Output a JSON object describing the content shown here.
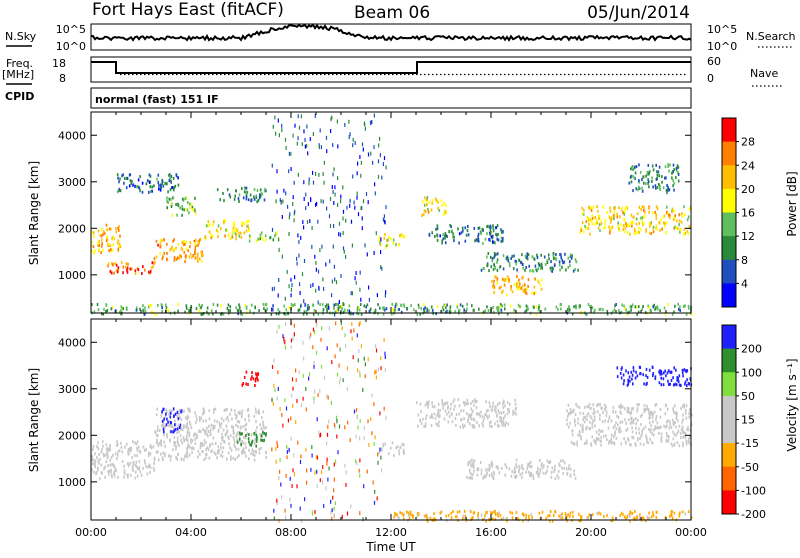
{
  "header": {
    "station": "Fort Hays East (fitACF)",
    "beam": "Beam 06",
    "date": "05/Jun/2014"
  },
  "sky_panel": {
    "left_label": "N.Sky",
    "right_label": "N.Search",
    "left_ticks": [
      "10^5",
      "10^0"
    ],
    "right_ticks": [
      "10^5",
      "10^0"
    ]
  },
  "freq_panel": {
    "left_label_1": "Freq.",
    "left_label_2": "[MHz]",
    "right_label": "Nave",
    "left_ticks": [
      "18",
      "8"
    ],
    "right_ticks": [
      "60",
      "0"
    ],
    "cpid_label": "CPID",
    "mode_text": "normal (fast) 151 IF"
  },
  "colors": {
    "power_scale": [
      "#0000ff",
      "#1f4fbf",
      "#2a8a3a",
      "#5fbf5f",
      "#ffff00",
      "#ffbf00",
      "#ff7f00",
      "#ff0000"
    ],
    "velocity_scale": [
      "#ff0000",
      "#ff6600",
      "#ffaa00",
      "#c8c8c8",
      "#c8c8c8",
      "#7fdf3f",
      "#2f8f2f",
      "#2020ff"
    ],
    "ground_scatter": "#bdbdbd"
  },
  "chart_data": [
    {
      "type": "heatmap",
      "name": "power",
      "ylabel": "Slant Range [km]",
      "x_ticks": [
        "00:00",
        "04:00",
        "08:00",
        "12:00",
        "16:00",
        "20:00",
        "00:00"
      ],
      "y_ticks": [
        "1000",
        "2000",
        "3000",
        "4000"
      ],
      "xlim": [
        0,
        24
      ],
      "ylim": [
        180,
        4500
      ],
      "colorbar": {
        "label": "Power [dB]",
        "ticks": [
          "4",
          "8",
          "12",
          "16",
          "20",
          "24",
          "28"
        ],
        "range": [
          0,
          32
        ]
      },
      "bands": [
        {
          "t": [
            0.0,
            1.2
          ],
          "r": [
            1500,
            2100
          ],
          "v": 22
        },
        {
          "t": [
            0.6,
            2.5
          ],
          "r": [
            1050,
            1300
          ],
          "v": 26
        },
        {
          "t": [
            2.5,
            4.5
          ],
          "r": [
            1300,
            1800
          ],
          "v": 24
        },
        {
          "t": [
            4.5,
            6.3
          ],
          "r": [
            1800,
            2200
          ],
          "v": 20
        },
        {
          "t": [
            6.3,
            7.5
          ],
          "r": [
            1750,
            1950
          ],
          "v": 14
        },
        {
          "t": [
            3.0,
            4.2
          ],
          "r": [
            2300,
            2700
          ],
          "v": 14
        },
        {
          "t": [
            1.0,
            3.5
          ],
          "r": [
            2800,
            3200
          ],
          "v": 8
        },
        {
          "t": [
            5.0,
            7.0
          ],
          "r": [
            2600,
            2900
          ],
          "v": 10
        },
        {
          "t": [
            11.5,
            12.5
          ],
          "r": [
            1600,
            1900
          ],
          "v": 18
        },
        {
          "t": [
            13.2,
            14.2
          ],
          "r": [
            2300,
            2700
          ],
          "v": 20
        },
        {
          "t": [
            13.5,
            16.5
          ],
          "r": [
            1700,
            2100
          ],
          "v": 8
        },
        {
          "t": [
            15.5,
            19.5
          ],
          "r": [
            1100,
            1500
          ],
          "v": 10
        },
        {
          "t": [
            16.0,
            18.0
          ],
          "r": [
            600,
            1000
          ],
          "v": 22
        },
        {
          "t": [
            19.5,
            24.0
          ],
          "r": [
            1900,
            2500
          ],
          "v": 20
        },
        {
          "t": [
            21.5,
            23.5
          ],
          "r": [
            2800,
            3400
          ],
          "v": 10
        },
        {
          "t": [
            0.0,
            24.0
          ],
          "r": [
            180,
            400
          ],
          "v": 12
        }
      ]
    },
    {
      "type": "heatmap",
      "name": "velocity",
      "ylabel": "Slant Range [km]",
      "xlabel": "Time UT",
      "x_ticks": [
        "00:00",
        "04:00",
        "08:00",
        "12:00",
        "16:00",
        "20:00",
        "00:00"
      ],
      "y_ticks": [
        "1000",
        "2000",
        "3000",
        "4000"
      ],
      "xlim": [
        0,
        24
      ],
      "ylim": [
        180,
        4500
      ],
      "colorbar": {
        "label": "Velocity [m s⁻¹]",
        "ticks": [
          "200",
          "100",
          "50",
          "15",
          "-15",
          "-50",
          "-100",
          "-200"
        ],
        "range": [
          -250,
          250
        ]
      },
      "bands": [
        {
          "t": [
            0.0,
            2.5
          ],
          "r": [
            1100,
            1900
          ],
          "v": 0
        },
        {
          "t": [
            2.5,
            7.0
          ],
          "r": [
            1500,
            2600
          ],
          "v": 0
        },
        {
          "t": [
            2.8,
            3.6
          ],
          "r": [
            2100,
            2600
          ],
          "v": 220
        },
        {
          "t": [
            6.0,
            6.8
          ],
          "r": [
            3100,
            3400
          ],
          "v": -220
        },
        {
          "t": [
            5.8,
            7.0
          ],
          "r": [
            1800,
            2100
          ],
          "v": 70
        },
        {
          "t": [
            11.5,
            12.5
          ],
          "r": [
            1600,
            1900
          ],
          "v": 0
        },
        {
          "t": [
            13.0,
            17.0
          ],
          "r": [
            2200,
            2800
          ],
          "v": 0
        },
        {
          "t": [
            15.0,
            19.5
          ],
          "r": [
            1100,
            1500
          ],
          "v": 0
        },
        {
          "t": [
            19.0,
            24.0
          ],
          "r": [
            1800,
            2700
          ],
          "v": 0
        },
        {
          "t": [
            21.0,
            24.0
          ],
          "r": [
            3100,
            3500
          ],
          "v": 210
        },
        {
          "t": [
            12.0,
            24.0
          ],
          "r": [
            180,
            400
          ],
          "v": -60
        }
      ]
    }
  ]
}
